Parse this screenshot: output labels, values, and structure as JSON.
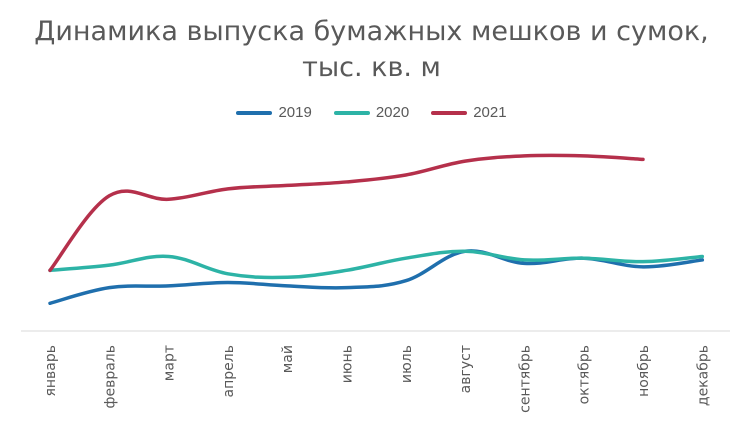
{
  "chart_data": {
    "type": "line",
    "title_line_1": "Динамика выпуска бумажных мешков и сумок,",
    "title_line_2": "тыс. кв. м",
    "categories": [
      "январь",
      "февраль",
      "март",
      "апрель",
      "май",
      "июнь",
      "июль",
      "август",
      "сентябрь",
      "октябрь",
      "ноябрь",
      "декабрь"
    ],
    "series": [
      {
        "name": "2019",
        "color": "#1f6fad",
        "values": [
          16,
          25,
          26,
          28,
          26,
          25,
          29,
          46,
          39,
          42,
          37,
          41
        ]
      },
      {
        "name": "2020",
        "color": "#2db3a6",
        "values": [
          35,
          38,
          43,
          33,
          31,
          35,
          42,
          46,
          41,
          42,
          40,
          43
        ]
      },
      {
        "name": "2021",
        "color": "#b5304b",
        "values": [
          35,
          78,
          76,
          82,
          84,
          86,
          90,
          98,
          101,
          101,
          99,
          null
        ]
      }
    ],
    "ylim": [
      0,
      120
    ],
    "y_axis_visible": false,
    "grid": false,
    "legend_position": "top-center",
    "curve": "smooth"
  }
}
